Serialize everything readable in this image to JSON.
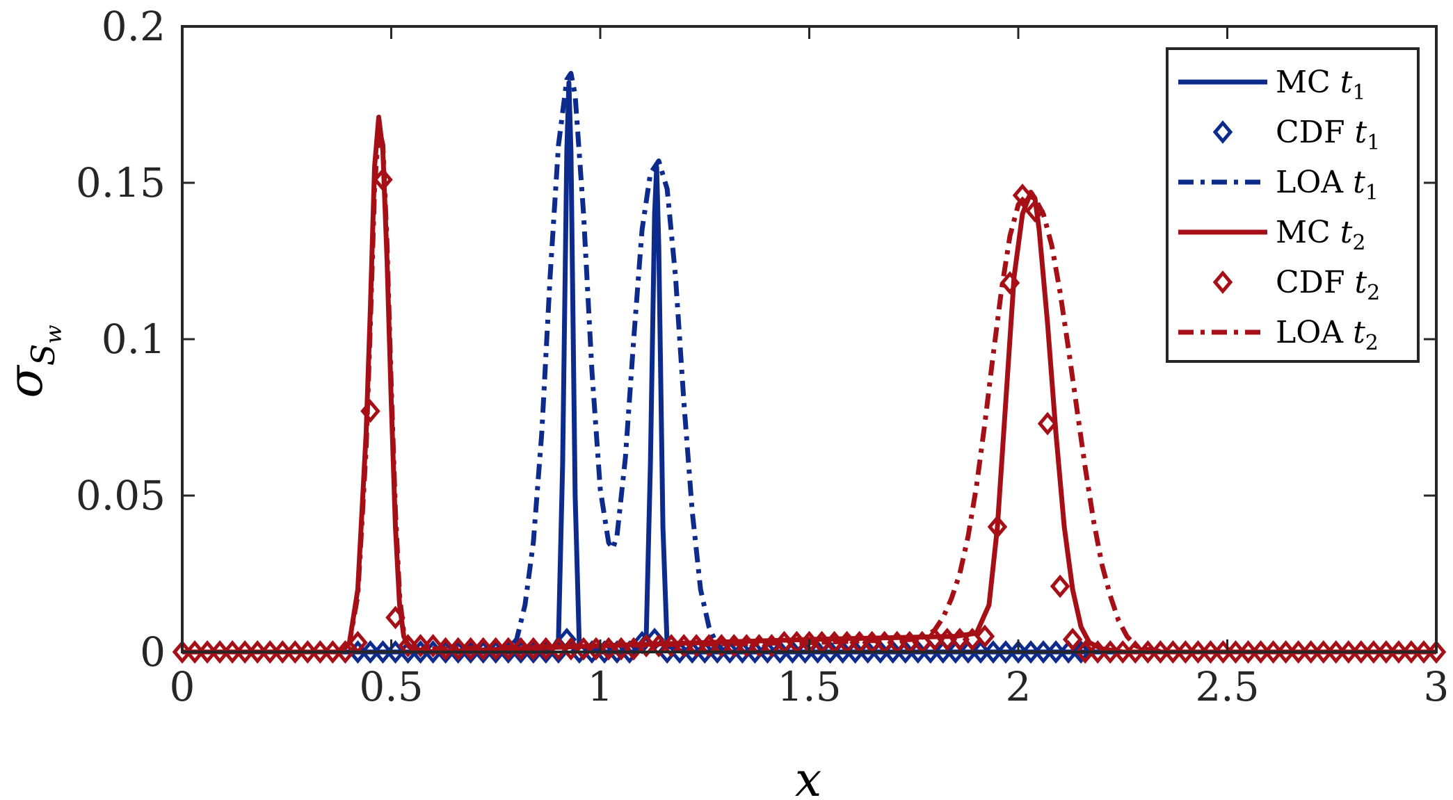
{
  "chart_data": {
    "type": "line",
    "title": "",
    "xlabel": "x",
    "ylabel": "σ",
    "ylabel_sub": "S",
    "ylabel_subsub": "w",
    "xlim": [
      0,
      3
    ],
    "ylim": [
      0,
      0.2
    ],
    "xticks": [
      0,
      0.5,
      1,
      1.5,
      2,
      2.5,
      3
    ],
    "yticks": [
      0,
      0.05,
      0.1,
      0.15,
      0.2
    ],
    "xtick_labels": [
      "0",
      "0.5",
      "1",
      "1.5",
      "2",
      "2.5",
      "3"
    ],
    "ytick_labels": [
      "0",
      "0.05",
      "0.1",
      "0.15",
      "0.2"
    ],
    "grid": false,
    "legend_position": "top-right",
    "series": [
      {
        "name": "MC",
        "sub": "1",
        "style": "solid",
        "color": "#0d2b8c",
        "x": [
          0.0,
          0.2,
          0.4,
          0.6,
          0.8,
          0.88,
          0.9,
          0.91,
          0.92,
          0.925,
          0.93,
          0.94,
          0.95,
          1.0,
          1.08,
          1.11,
          1.12,
          1.13,
          1.135,
          1.14,
          1.15,
          1.16,
          1.2,
          1.5,
          2.0,
          2.5,
          3.0
        ],
        "y": [
          0,
          0,
          0,
          0,
          0,
          0,
          0.004,
          0.06,
          0.16,
          0.182,
          0.16,
          0.05,
          0.002,
          0,
          0,
          0.005,
          0.06,
          0.14,
          0.155,
          0.13,
          0.04,
          0.002,
          0,
          0,
          0,
          0,
          0
        ]
      },
      {
        "name": "CDF",
        "sub": "1",
        "style": "diamond",
        "color": "#0d2b8c",
        "x": [
          0.42,
          0.45,
          0.48,
          0.51,
          0.54,
          0.57,
          0.6,
          0.63,
          0.66,
          0.69,
          0.72,
          0.75,
          0.78,
          0.81,
          0.84,
          0.87,
          0.9,
          0.92,
          0.95,
          0.98,
          1.01,
          1.04,
          1.07,
          1.1,
          1.13,
          1.16,
          1.19,
          1.22,
          1.25,
          1.28,
          1.31,
          1.34,
          1.37,
          1.4,
          1.43,
          1.46,
          1.49,
          1.52,
          1.55,
          1.58,
          1.61,
          1.64,
          1.67,
          1.7,
          1.73,
          1.76,
          1.79,
          1.82,
          1.85,
          1.88,
          1.91,
          1.94,
          1.97,
          2.0,
          2.03,
          2.06,
          2.09,
          2.12,
          2.15
        ],
        "y": [
          0,
          0,
          0,
          0,
          0,
          0,
          0,
          0,
          0,
          0,
          0,
          0,
          0,
          0,
          0,
          0,
          0,
          0.004,
          0,
          0,
          0,
          0,
          0,
          0.003,
          0.004,
          0,
          0,
          0,
          0,
          0,
          0,
          0,
          0,
          0,
          0,
          0,
          0,
          0,
          0,
          0,
          0,
          0,
          0,
          0,
          0,
          0,
          0,
          0,
          0,
          0,
          0,
          0,
          0,
          0,
          0,
          0,
          0,
          0,
          0
        ]
      },
      {
        "name": "LOA",
        "sub": "1",
        "style": "dashdot",
        "color": "#0d2b8c",
        "x": [
          0.0,
          0.6,
          0.78,
          0.8,
          0.82,
          0.84,
          0.86,
          0.88,
          0.9,
          0.92,
          0.93,
          0.94,
          0.96,
          0.98,
          1.0,
          1.02,
          1.03,
          1.04,
          1.06,
          1.08,
          1.1,
          1.12,
          1.14,
          1.16,
          1.18,
          1.2,
          1.22,
          1.24,
          1.26,
          1.28,
          1.3,
          1.5,
          3.0
        ],
        "y": [
          0,
          0,
          0.001,
          0.004,
          0.015,
          0.035,
          0.07,
          0.12,
          0.162,
          0.183,
          0.185,
          0.178,
          0.14,
          0.09,
          0.052,
          0.035,
          0.033,
          0.037,
          0.062,
          0.1,
          0.135,
          0.153,
          0.157,
          0.148,
          0.12,
          0.08,
          0.045,
          0.02,
          0.008,
          0.002,
          0,
          0,
          0
        ]
      },
      {
        "name": "MC",
        "sub": "2",
        "style": "solid",
        "color": "#a50f15",
        "x": [
          0.0,
          0.38,
          0.4,
          0.42,
          0.44,
          0.45,
          0.46,
          0.47,
          0.48,
          0.49,
          0.5,
          0.51,
          0.52,
          0.53,
          0.54,
          0.55,
          0.6,
          1.0,
          1.5,
          1.85,
          1.9,
          1.93,
          1.95,
          1.97,
          1.99,
          2.01,
          2.03,
          2.04,
          2.05,
          2.07,
          2.09,
          2.11,
          2.13,
          2.15,
          2.17,
          2.2,
          2.25,
          3.0
        ],
        "y": [
          0,
          0,
          0.003,
          0.02,
          0.07,
          0.11,
          0.155,
          0.171,
          0.16,
          0.125,
          0.08,
          0.04,
          0.015,
          0.005,
          0.002,
          0.001,
          0,
          0.002,
          0.004,
          0.005,
          0.006,
          0.015,
          0.04,
          0.08,
          0.12,
          0.14,
          0.147,
          0.145,
          0.135,
          0.105,
          0.07,
          0.04,
          0.02,
          0.008,
          0.003,
          0.001,
          0,
          0
        ]
      },
      {
        "name": "CDF",
        "sub": "2",
        "style": "diamond",
        "color": "#a50f15",
        "x": [
          0.0,
          0.03,
          0.06,
          0.09,
          0.12,
          0.15,
          0.18,
          0.21,
          0.24,
          0.27,
          0.3,
          0.33,
          0.36,
          0.39,
          0.42,
          0.45,
          0.48,
          0.51,
          0.54,
          0.57,
          0.6,
          0.63,
          0.66,
          0.69,
          0.72,
          0.75,
          0.78,
          0.81,
          0.84,
          0.87,
          0.9,
          0.93,
          0.96,
          0.99,
          1.02,
          1.05,
          1.08,
          1.11,
          1.14,
          1.17,
          1.2,
          1.23,
          1.26,
          1.29,
          1.32,
          1.35,
          1.38,
          1.41,
          1.44,
          1.47,
          1.5,
          1.53,
          1.56,
          1.59,
          1.62,
          1.65,
          1.68,
          1.71,
          1.74,
          1.77,
          1.8,
          1.83,
          1.86,
          1.89,
          1.92,
          1.95,
          1.98,
          2.01,
          2.04,
          2.07,
          2.1,
          2.13,
          2.16,
          2.19,
          2.22,
          2.25,
          2.28,
          2.31,
          2.34,
          2.37,
          2.4,
          2.43,
          2.46,
          2.49,
          2.52,
          2.55,
          2.58,
          2.61,
          2.64,
          2.67,
          2.7,
          2.73,
          2.76,
          2.79,
          2.82,
          2.85,
          2.88,
          2.91,
          2.94,
          2.97,
          3.0
        ],
        "y": [
          0,
          0,
          0,
          0,
          0,
          0,
          0,
          0,
          0,
          0,
          0,
          0,
          0,
          0,
          0.003,
          0.077,
          0.151,
          0.011,
          0.002,
          0.002,
          0.002,
          0.001,
          0.001,
          0.001,
          0.001,
          0.001,
          0.001,
          0.001,
          0.001,
          0.001,
          0.001,
          0.001,
          0.001,
          0.001,
          0.001,
          0.001,
          0.001,
          0.002,
          0.002,
          0.002,
          0.002,
          0.002,
          0.002,
          0.002,
          0.002,
          0.002,
          0.002,
          0.002,
          0.003,
          0.003,
          0.003,
          0.003,
          0.003,
          0.003,
          0.003,
          0.003,
          0.003,
          0.003,
          0.003,
          0.003,
          0.004,
          0.004,
          0.004,
          0.004,
          0.005,
          0.04,
          0.118,
          0.146,
          0.141,
          0.073,
          0.021,
          0.004,
          0,
          0,
          0,
          0,
          0,
          0,
          0,
          0,
          0,
          0,
          0,
          0,
          0,
          0,
          0,
          0,
          0,
          0,
          0,
          0,
          0,
          0,
          0,
          0,
          0,
          0,
          0,
          0,
          0
        ]
      },
      {
        "name": "LOA",
        "sub": "2",
        "style": "dashdot",
        "color": "#a50f15",
        "x": [
          0.0,
          0.38,
          0.4,
          0.42,
          0.44,
          0.45,
          0.46,
          0.47,
          0.48,
          0.49,
          0.5,
          0.51,
          0.52,
          0.53,
          0.54,
          0.56,
          0.6,
          1.0,
          1.5,
          1.75,
          1.78,
          1.8,
          1.82,
          1.84,
          1.86,
          1.88,
          1.9,
          1.92,
          1.94,
          1.96,
          1.98,
          2.0,
          2.02,
          2.04,
          2.06,
          2.08,
          2.1,
          2.12,
          2.14,
          2.16,
          2.18,
          2.2,
          2.22,
          2.24,
          2.26,
          2.28,
          2.3,
          2.35,
          3.0
        ],
        "y": [
          0,
          0,
          0.003,
          0.018,
          0.065,
          0.105,
          0.148,
          0.168,
          0.162,
          0.13,
          0.085,
          0.045,
          0.018,
          0.006,
          0.002,
          0.001,
          0.001,
          0.002,
          0.003,
          0.004,
          0.005,
          0.007,
          0.011,
          0.017,
          0.025,
          0.037,
          0.053,
          0.073,
          0.095,
          0.116,
          0.133,
          0.143,
          0.146,
          0.145,
          0.14,
          0.13,
          0.115,
          0.097,
          0.078,
          0.059,
          0.042,
          0.028,
          0.018,
          0.01,
          0.005,
          0.002,
          0.001,
          0,
          0
        ]
      }
    ]
  }
}
